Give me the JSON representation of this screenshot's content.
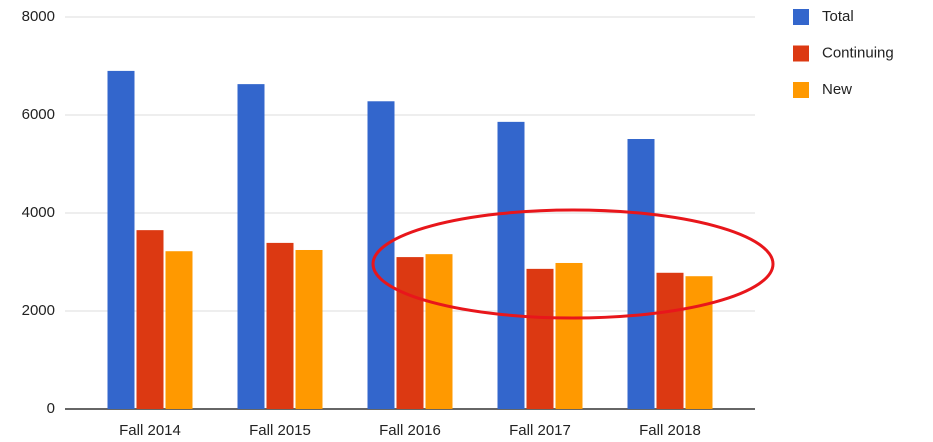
{
  "chart_data": {
    "type": "bar",
    "categories": [
      "Fall 2014",
      "Fall 2015",
      "Fall 2016",
      "Fall 2017",
      "Fall 2018"
    ],
    "series": [
      {
        "name": "Total",
        "color": "#3366cc",
        "values": [
          6900,
          6630,
          6280,
          5860,
          5510
        ]
      },
      {
        "name": "Continuing",
        "color": "#dc3912",
        "values": [
          3650,
          3390,
          3100,
          2860,
          2780
        ]
      },
      {
        "name": "New",
        "color": "#ff9900",
        "values": [
          3220,
          3245,
          3160,
          2980,
          2710
        ]
      }
    ],
    "ylim": [
      0,
      8000
    ],
    "yticks": [
      0,
      2000,
      4000,
      6000,
      8000
    ],
    "grid": true,
    "legend": "right"
  }
}
